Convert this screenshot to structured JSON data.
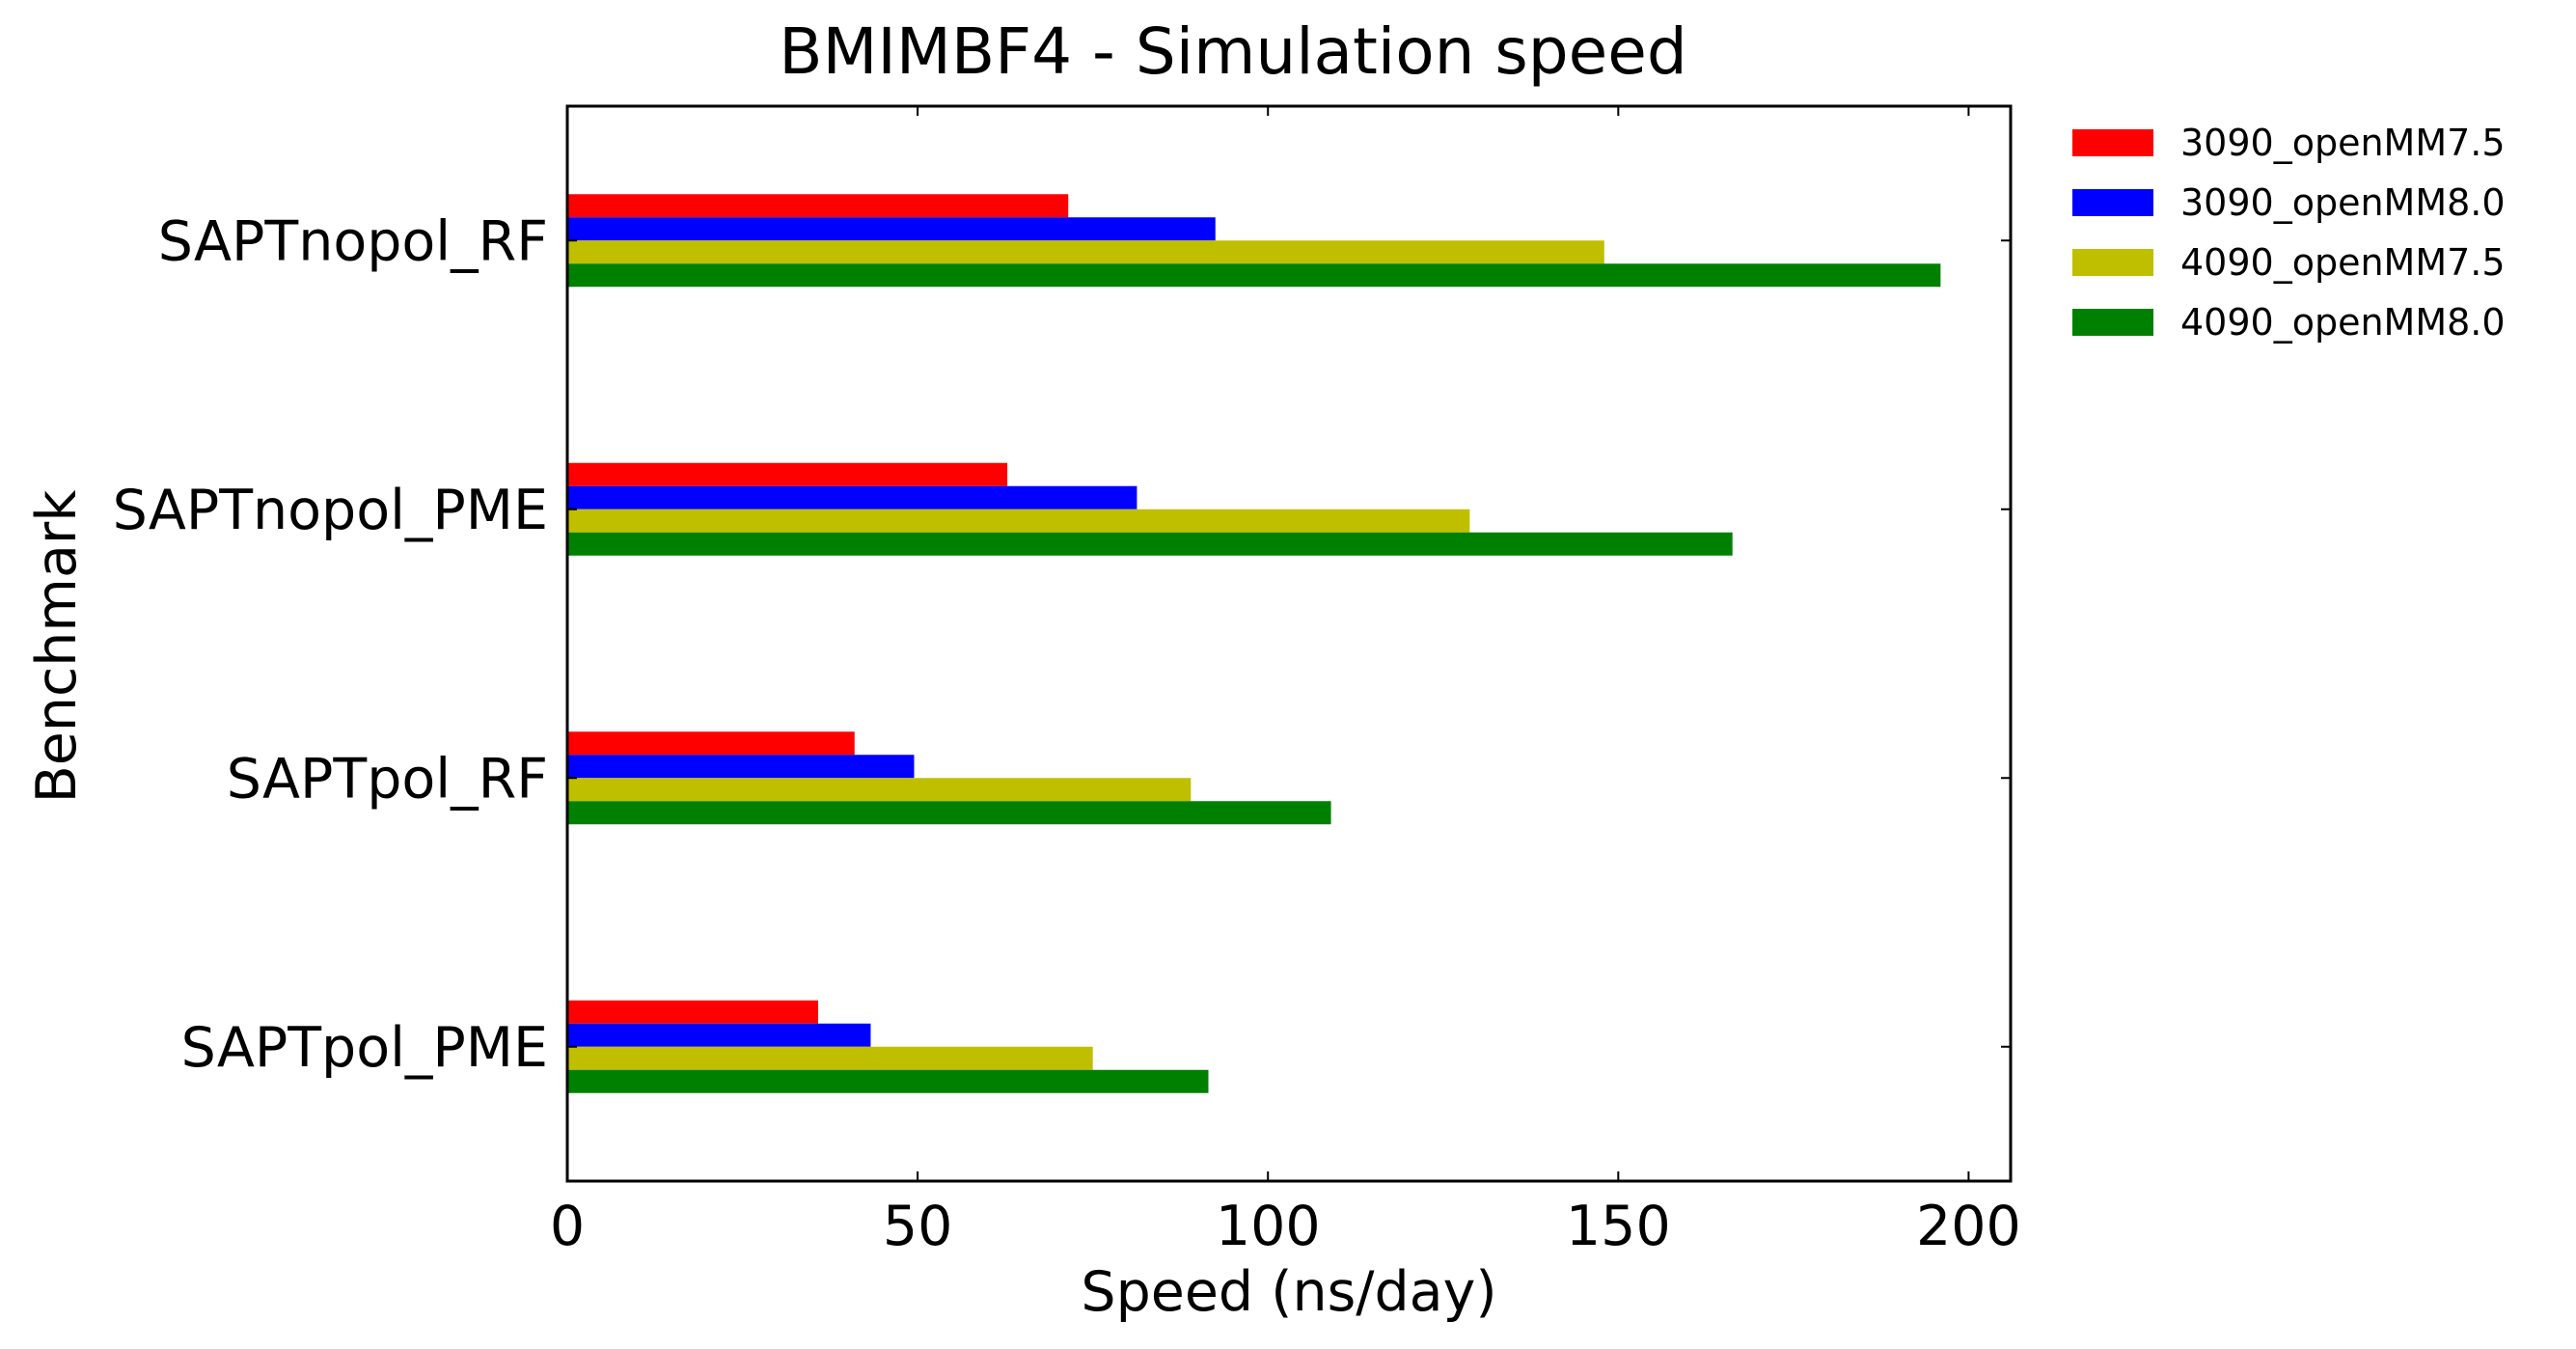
{
  "chart_data": {
    "type": "bar",
    "orientation": "horizontal",
    "title": "BMIMBF4 - Simulation speed",
    "xlabel": "Speed (ns/day)",
    "ylabel": "Benchmark",
    "xlim": [
      0,
      206
    ],
    "xticks": [
      0,
      50,
      100,
      150,
      200
    ],
    "grid": false,
    "legend_position": "outside-top-right",
    "categories": [
      "SAPTnopol_RF",
      "SAPTnopol_PME",
      "SAPTpol_RF",
      "SAPTpol_PME"
    ],
    "series": [
      {
        "name": "3090_openMM7.5",
        "color": "#ff0000",
        "values": [
          71.5,
          62.8,
          41.0,
          35.8
        ]
      },
      {
        "name": "3090_openMM8.0",
        "color": "#0000ff",
        "values": [
          92.5,
          81.3,
          49.5,
          43.3
        ]
      },
      {
        "name": "4090_openMM7.5",
        "color": "#bfbf00",
        "values": [
          148.0,
          128.8,
          89.0,
          75.0
        ]
      },
      {
        "name": "4090_openMM8.0",
        "color": "#008000",
        "values": [
          196.0,
          166.3,
          109.0,
          91.5
        ]
      }
    ]
  }
}
